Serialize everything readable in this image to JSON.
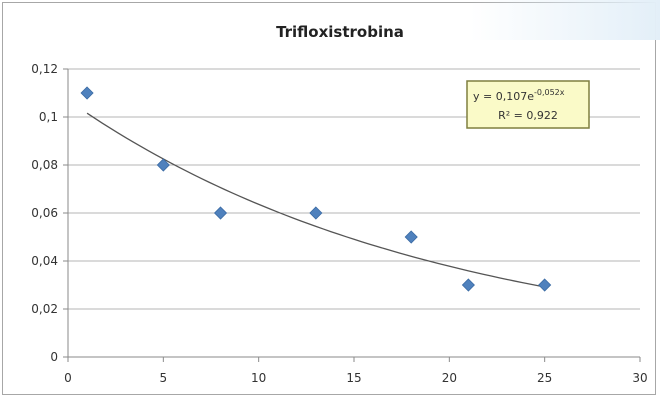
{
  "chart_data": {
    "type": "scatter",
    "title": "Trifloxistrobina",
    "xlabel": "",
    "ylabel": "",
    "xlim": [
      0,
      30
    ],
    "ylim": [
      0,
      0.12
    ],
    "x_ticks": [
      "0",
      "5",
      "10",
      "15",
      "20",
      "25",
      "30"
    ],
    "y_ticks": [
      "0",
      "0,02",
      "0,04",
      "0,06",
      "0,08",
      "0,1",
      "0,12"
    ],
    "grid": "horizontal",
    "legend": "none",
    "marker_color": "#4f81bd",
    "trendline_color": "#555555",
    "points": [
      {
        "x": 1,
        "y": 0.11
      },
      {
        "x": 5,
        "y": 0.08
      },
      {
        "x": 8,
        "y": 0.06
      },
      {
        "x": 13,
        "y": 0.06
      },
      {
        "x": 18,
        "y": 0.05
      },
      {
        "x": 21,
        "y": 0.03
      },
      {
        "x": 25,
        "y": 0.03
      }
    ],
    "trendline": {
      "type": "exponential",
      "a": 0.107,
      "b": -0.052,
      "equation_label": "y = 0,107e",
      "exponent_label": "-0,052x",
      "r2_label": "R² = 0,922"
    }
  }
}
